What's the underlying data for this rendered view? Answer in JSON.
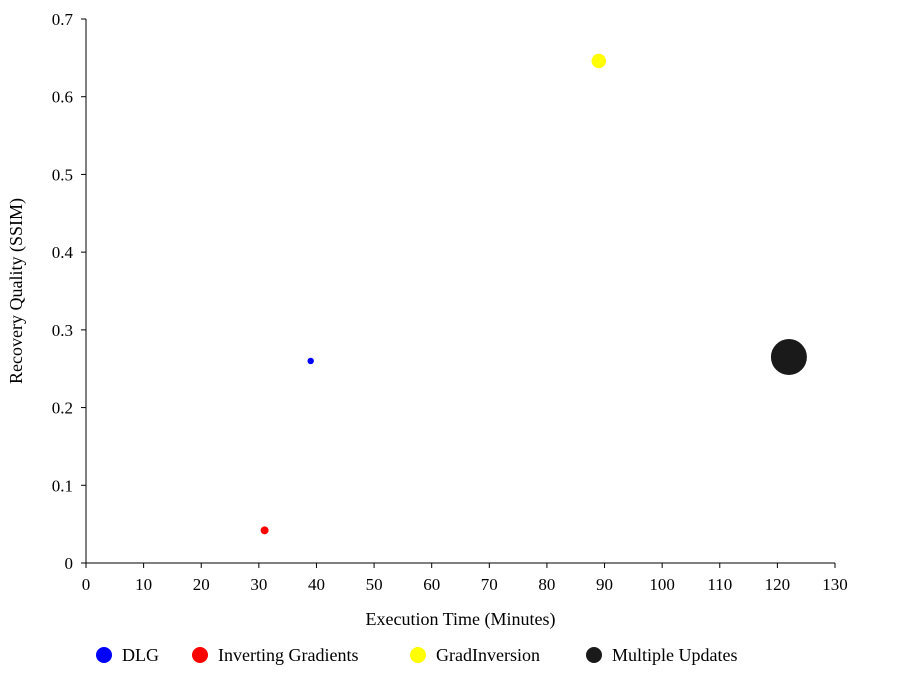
{
  "chart_data": {
    "type": "scatter",
    "title": "",
    "xlabel": "Execution Time (Minutes)",
    "ylabel": "Recovery Quality (SSIM)",
    "xlim": [
      0,
      130
    ],
    "ylim": [
      0,
      0.7
    ],
    "x_ticks": [
      "0",
      "10",
      "20",
      "30",
      "40",
      "50",
      "60",
      "70",
      "80",
      "90",
      "100",
      "110",
      "120",
      "130"
    ],
    "y_ticks": [
      "0",
      "0.1",
      "0.2",
      "0.3",
      "0.4",
      "0.5",
      "0.6",
      "0.7"
    ],
    "grid": false,
    "legend_position": "bottom",
    "marker_size_encodes_value": true,
    "series": [
      {
        "name": "DLG",
        "color": "#0000ff",
        "x": 39,
        "y": 0.26,
        "relative_size": 0.18
      },
      {
        "name": "Inverting Gradients",
        "color": "#ff0000",
        "x": 31,
        "y": 0.042,
        "relative_size": 0.22
      },
      {
        "name": "GradInversion",
        "color": "#ffff00",
        "x": 89,
        "y": 0.646,
        "relative_size": 0.4
      },
      {
        "name": "Multiple Updates",
        "color": "#1a1a1a",
        "x": 122,
        "y": 0.265,
        "relative_size": 1.0
      }
    ]
  }
}
